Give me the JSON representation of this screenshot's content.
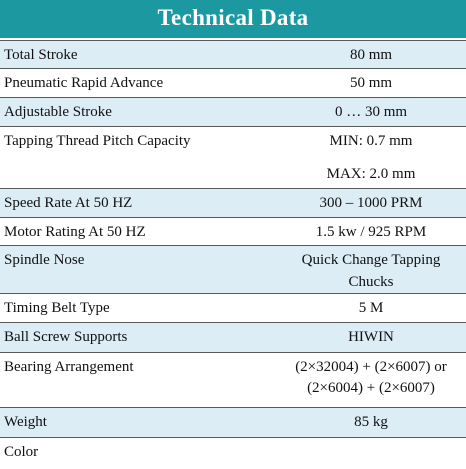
{
  "table": {
    "title": "Technical Data",
    "rows": [
      {
        "label": "Total Stroke",
        "value": [
          "80 mm"
        ]
      },
      {
        "label": "Pneumatic Rapid Advance",
        "value": [
          "50 mm"
        ]
      },
      {
        "label": "Adjustable Stroke",
        "value": [
          "0 … 30 mm"
        ]
      },
      {
        "label": "Tapping Thread Pitch Capacity",
        "value": [
          "MIN: 0.7 mm",
          "MAX: 2.0 mm"
        ]
      },
      {
        "label": "Speed Rate At 50 HZ",
        "value": [
          "300 – 1000 PRM"
        ]
      },
      {
        "label": "Motor Rating At 50 HZ",
        "value": [
          "1.5 kw / 925 RPM"
        ]
      },
      {
        "label": "Spindle Nose",
        "value": [
          "Quick Change Tapping",
          "Chucks"
        ]
      },
      {
        "label": "Timing Belt Type",
        "value": [
          "5 M"
        ]
      },
      {
        "label": "Ball Screw Supports",
        "value": [
          "HIWIN"
        ]
      },
      {
        "label": "Bearing Arrangement",
        "value": [
          "(2×32004) + (2×6007) or",
          "(2×6004) + (2×6007)"
        ]
      },
      {
        "label": "Weight",
        "value": [
          "85 kg"
        ]
      },
      {
        "label": "Color"
      }
    ]
  }
}
